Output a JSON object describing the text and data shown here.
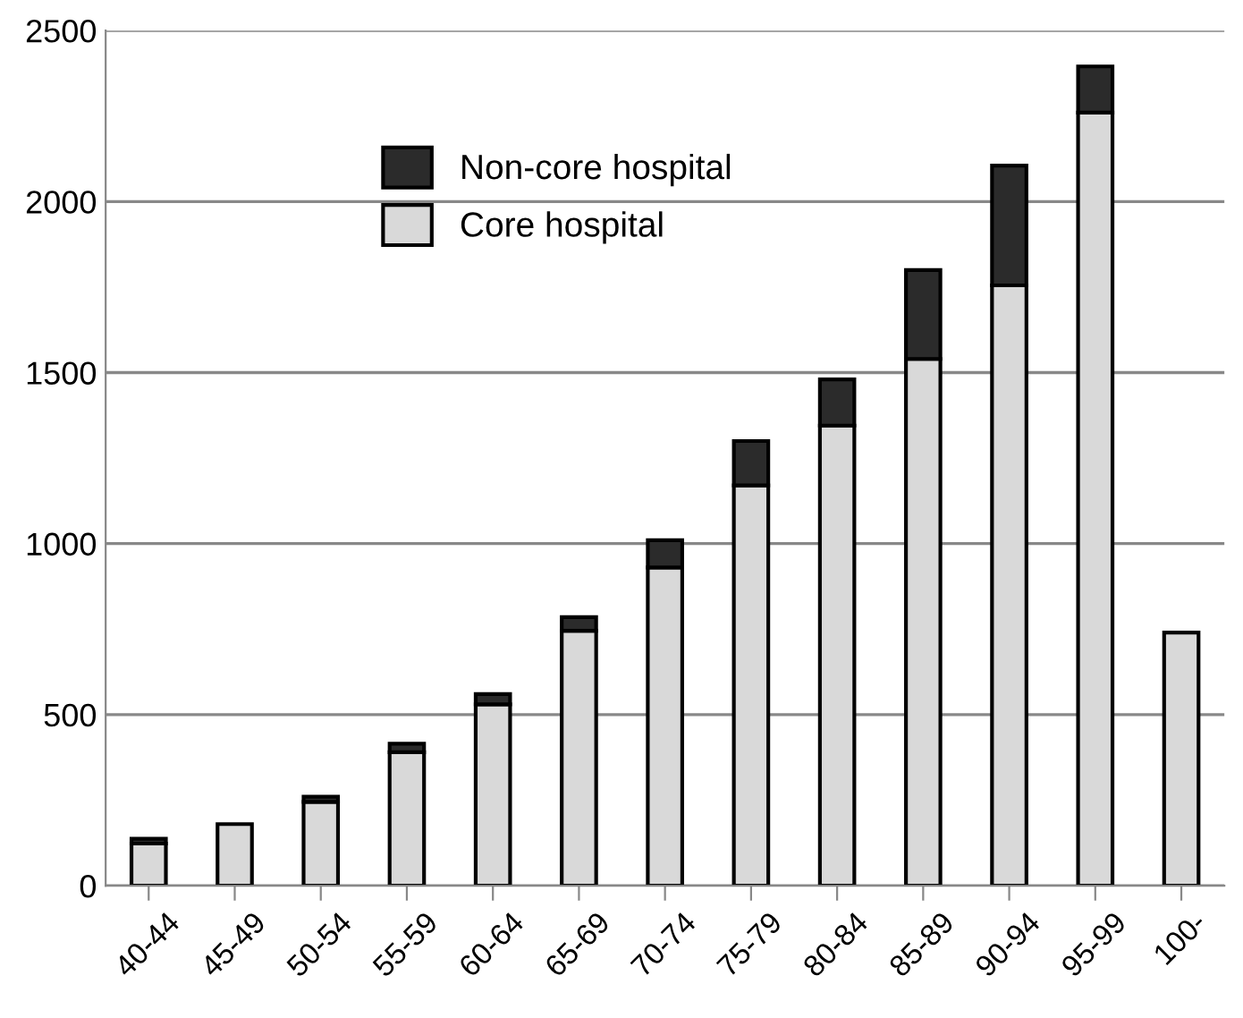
{
  "chart_data": {
    "type": "bar",
    "stacked": true,
    "categories": [
      "40-44",
      "45-49",
      "50-54",
      "55-59",
      "60-64",
      "65-69",
      "70-74",
      "75-79",
      "80-84",
      "85-89",
      "90-94",
      "95-99",
      "100-"
    ],
    "series": [
      {
        "name": "Core hospital",
        "color": "#d9d9d9",
        "values": [
          123,
          180,
          245,
          390,
          530,
          745,
          930,
          1170,
          1345,
          1540,
          1755,
          2260,
          740
        ]
      },
      {
        "name": "Non-core hospital",
        "color": "#2b2b2b",
        "values": [
          14,
          null,
          15,
          25,
          30,
          40,
          80,
          130,
          135,
          260,
          350,
          135,
          null
        ]
      }
    ],
    "ylim": [
      0,
      2500
    ],
    "yticks": [
      0,
      500,
      1000,
      1500,
      2000,
      2500
    ],
    "grid": "y",
    "legend": "top left"
  }
}
